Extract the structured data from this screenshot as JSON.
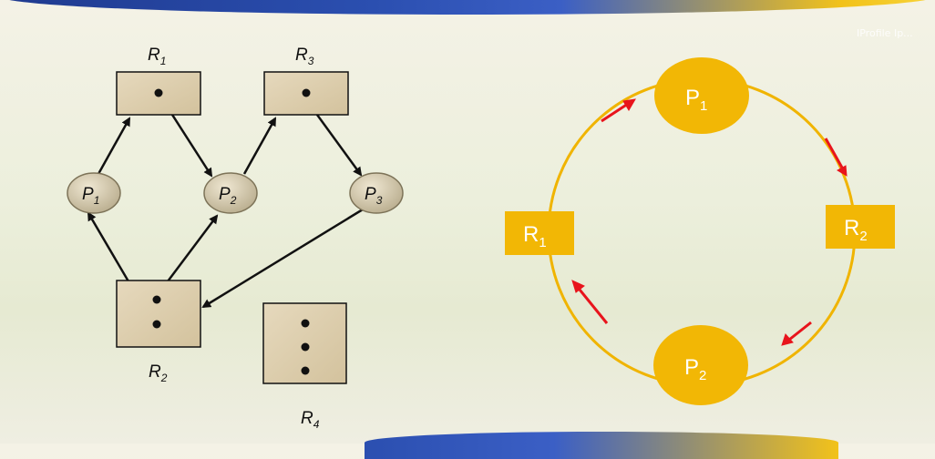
{
  "watermark": "IProfile Ip...",
  "left_graph": {
    "resources": [
      {
        "id": "R1",
        "name": "R",
        "sub": "1",
        "instances": 1
      },
      {
        "id": "R3",
        "name": "R",
        "sub": "3",
        "instances": 1
      },
      {
        "id": "R2",
        "name": "R",
        "sub": "2",
        "instances": 2
      },
      {
        "id": "R4",
        "name": "R",
        "sub": "4",
        "instances": 3
      }
    ],
    "processes": [
      {
        "id": "P1",
        "name": "P",
        "sub": "1"
      },
      {
        "id": "P2",
        "name": "P",
        "sub": "2"
      },
      {
        "id": "P3",
        "name": "P",
        "sub": "3"
      }
    ],
    "edges": [
      {
        "from": "P1",
        "to": "R1"
      },
      {
        "from": "R1",
        "to": "P2"
      },
      {
        "from": "P2",
        "to": "R3"
      },
      {
        "from": "R3",
        "to": "P3"
      },
      {
        "from": "P3",
        "to": "R2"
      },
      {
        "from": "R2",
        "to": "P1"
      },
      {
        "from": "R2",
        "to": "P2"
      }
    ]
  },
  "right_cycle": {
    "nodes": [
      {
        "id": "P1",
        "name": "P",
        "sub": "1",
        "kind": "process"
      },
      {
        "id": "R2",
        "name": "R",
        "sub": "2",
        "kind": "resource"
      },
      {
        "id": "P2",
        "name": "P",
        "sub": "2",
        "kind": "process"
      },
      {
        "id": "R1",
        "name": "R",
        "sub": "1",
        "kind": "resource"
      }
    ],
    "colors": {
      "circle": "#f0b400",
      "node": "#f2b705",
      "arrow": "#e8141c"
    }
  }
}
